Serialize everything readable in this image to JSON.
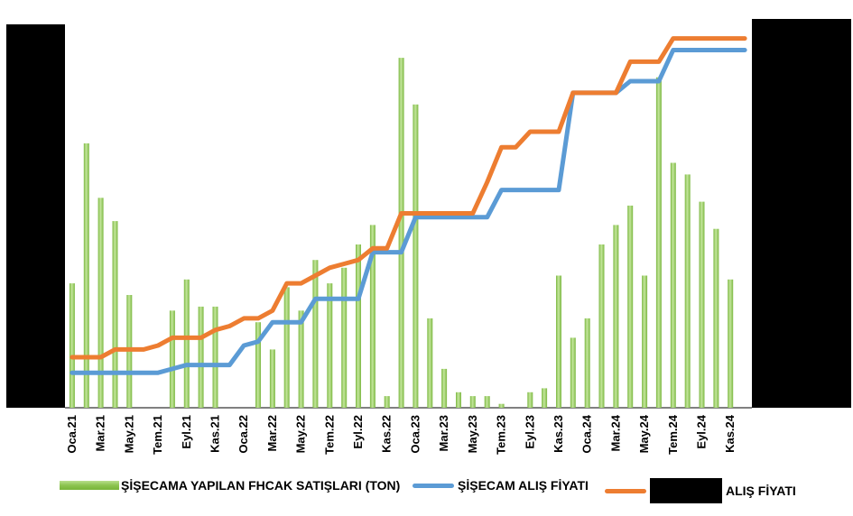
{
  "colors": {
    "bar": "#8cc450",
    "bar_light": "#c4e69c",
    "blue": "#5b9bd5",
    "orange": "#ed7d31",
    "redaction": "#000000"
  },
  "chart_data": {
    "type": "bar+line",
    "categories": [
      "Oca.21",
      "Şub.21",
      "Mar.21",
      "Nis.21",
      "May.21",
      "Haz.21",
      "Tem.21",
      "Ağu.21",
      "Eyl.21",
      "Eki.21",
      "Kas.21",
      "Ara.21",
      "Oca.22",
      "Şub.22",
      "Mar.22",
      "Nis.22",
      "May.22",
      "Haz.22",
      "Tem.22",
      "Ağu.22",
      "Eyl.22",
      "Eki.22",
      "Kas.22",
      "Ara.22",
      "Oca.23",
      "Şub.23",
      "Mar.23",
      "Nis.23",
      "May.23",
      "Haz.23",
      "Tem.23",
      "Ağu.23",
      "Eyl.23",
      "Eki.23",
      "Kas.23",
      "Ara.23",
      "Oca.24",
      "Şub.24",
      "Mar.24",
      "Nis.24",
      "May.24",
      "Haz.24",
      "Tem.24",
      "Ağu.24",
      "Eyl.24",
      "Eki.24",
      "Kas.24",
      "Ara.24"
    ],
    "tick_labels": [
      "Oca.21",
      "Mar.21",
      "May.21",
      "Tem.21",
      "Eyl.21",
      "Kas.21",
      "Oca.22",
      "Mar.22",
      "May.22",
      "Tem.22",
      "Eyl.22",
      "Kas.22",
      "Oca.23",
      "Mar.23",
      "May.23",
      "Tem.23",
      "Eyl.23",
      "Kas.23",
      "Oca.24",
      "Mar.24",
      "May.24",
      "Tem.24",
      "Eyl.24",
      "Kas.24"
    ],
    "ylim": [
      0,
      100
    ],
    "y2lim": [
      0,
      100
    ],
    "series": [
      {
        "name": "ŞİŞECAMA YAPILAN FHCAK SATIŞLARI (TON)",
        "type": "bar",
        "values": [
          32,
          68,
          54,
          48,
          29,
          0,
          0,
          25,
          33,
          26,
          26,
          0,
          0,
          22,
          15,
          31,
          25,
          38,
          32,
          36,
          42,
          47,
          3,
          90,
          78,
          23,
          10,
          4,
          3,
          3,
          1,
          0,
          4,
          5,
          34,
          18,
          23,
          42,
          47,
          52,
          34,
          85,
          63,
          60,
          53,
          46,
          33,
          0
        ]
      },
      {
        "name": "ŞİŞECAM ALIŞ FİYATI",
        "type": "line",
        "values": [
          9,
          9,
          9,
          9,
          9,
          9,
          9,
          10,
          11,
          11,
          11,
          11,
          16,
          17,
          22,
          22,
          22,
          28,
          28,
          28,
          28,
          40,
          40,
          40,
          49,
          49,
          49,
          49,
          49,
          49,
          56,
          56,
          56,
          56,
          56,
          81,
          81,
          81,
          81,
          84,
          84,
          84,
          92,
          92,
          92,
          92,
          92,
          92
        ]
      },
      {
        "name": "ALIŞ FİYATI",
        "type": "line",
        "values": [
          13,
          13,
          13,
          15,
          15,
          15,
          16,
          18,
          18,
          18,
          20,
          21,
          23,
          23,
          25,
          32,
          32,
          34,
          36,
          37,
          38,
          41,
          41,
          50,
          50,
          50,
          50,
          50,
          50,
          58,
          67,
          67,
          71,
          71,
          71,
          81,
          81,
          81,
          81,
          89,
          89,
          89,
          95,
          95,
          95,
          95,
          95,
          95
        ]
      }
    ]
  },
  "legend": {
    "bars_label": "ŞİŞECAMA YAPILAN FHCAK SATIŞLARI (TON)",
    "blue_label": "ŞİŞECAM ALIŞ FİYATI",
    "orange_label": "ALIŞ FİYATI"
  }
}
